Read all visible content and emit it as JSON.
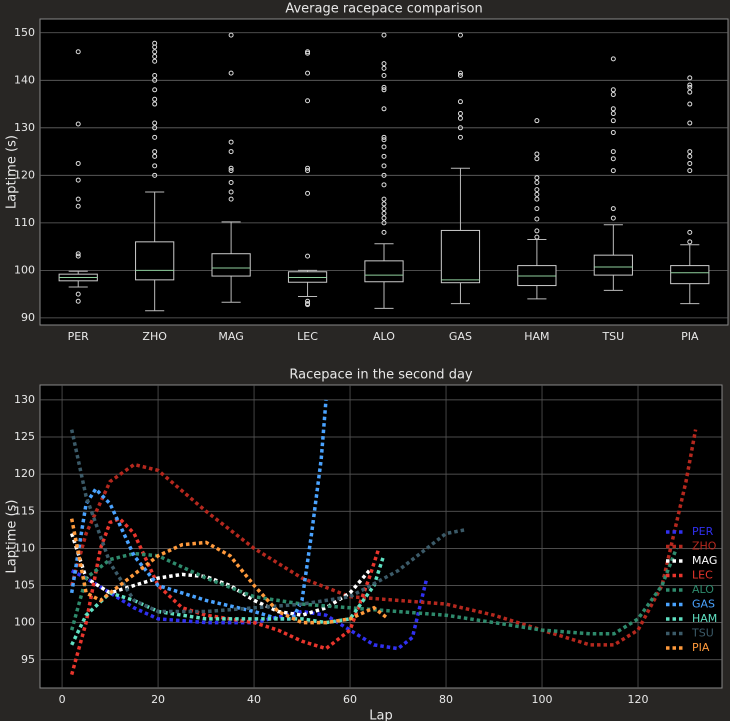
{
  "chart_data": [
    {
      "type": "box",
      "title": "Average racepace comparison",
      "ylabel": "Laptime (s)",
      "categories": [
        "PER",
        "ZHO",
        "MAG",
        "LEC",
        "ALO",
        "GAS",
        "HAM",
        "TSU",
        "PIA"
      ],
      "boxes": [
        {
          "whislo": 96.5,
          "q1": 97.8,
          "med": 98.5,
          "q3": 99.2,
          "whishi": 99.8,
          "fliers": [
            146,
            130.8,
            122.5,
            119,
            115,
            113.5,
            103.5,
            103,
            95,
            93.5
          ]
        },
        {
          "whislo": 91.5,
          "q1": 98,
          "med": 100,
          "q3": 106,
          "whishi": 116.5,
          "fliers": [
            147.8,
            147,
            146,
            145,
            144,
            141,
            140,
            138,
            136,
            135,
            131,
            130,
            128,
            125,
            124,
            122,
            120
          ]
        },
        {
          "whislo": 93.3,
          "q1": 98.8,
          "med": 100.5,
          "q3": 103.5,
          "whishi": 110.2,
          "fliers": [
            149.5,
            141.5,
            127,
            125,
            121.5,
            121,
            118.5,
            116.5,
            115
          ]
        },
        {
          "whislo": 94.5,
          "q1": 97.5,
          "med": 98.5,
          "q3": 99.7,
          "whishi": 100,
          "fliers": [
            146,
            145.7,
            141.5,
            135.7,
            121.5,
            121,
            116.2,
            103,
            93.5,
            93,
            92.8
          ]
        },
        {
          "whislo": 92,
          "q1": 97.6,
          "med": 99,
          "q3": 102,
          "whishi": 105.6,
          "fliers": [
            149.5,
            143.5,
            142.5,
            141,
            138.5,
            138,
            134,
            128,
            127.5,
            126,
            124,
            122,
            120,
            118,
            115,
            114,
            113,
            112,
            111,
            110,
            108
          ]
        },
        {
          "whislo": 93,
          "q1": 97.4,
          "med": 98,
          "q3": 108.4,
          "whishi": 121.5,
          "fliers": [
            149.5,
            141.5,
            141,
            135.5,
            133,
            132,
            130,
            128
          ]
        },
        {
          "whislo": 94,
          "q1": 96.8,
          "med": 98.8,
          "q3": 101,
          "whishi": 106.5,
          "fliers": [
            131.5,
            124.5,
            123.5,
            119.5,
            118.5,
            117,
            116,
            115,
            113,
            110.8,
            108.3,
            107
          ]
        },
        {
          "whislo": 95.8,
          "q1": 99,
          "med": 100.7,
          "q3": 103.2,
          "whishi": 109.6,
          "fliers": [
            144.5,
            138,
            137,
            134,
            133,
            131.5,
            129,
            125,
            123.5,
            121,
            113,
            111
          ]
        },
        {
          "whislo": 93,
          "q1": 97.2,
          "med": 99.5,
          "q3": 101,
          "whishi": 105.4,
          "fliers": [
            140.5,
            139,
            138.5,
            137.5,
            135,
            131,
            125,
            124,
            122.5,
            121,
            108,
            106
          ]
        }
      ],
      "box_color": "#000000",
      "median_color": "#8fd19e",
      "ylim": [
        88.5,
        152.9
      ],
      "yticks": [
        90,
        100,
        110,
        120,
        130,
        140,
        150
      ],
      "grid": true
    },
    {
      "type": "line",
      "title": "Racepace in the second day",
      "xlabel": "Lap",
      "ylabel": "Laptime (s)",
      "series": [
        {
          "name": "PER",
          "color": "#3030f0",
          "x": [
            2,
            5,
            10,
            15,
            20,
            30,
            40,
            50,
            55,
            60,
            65,
            70,
            73,
            76
          ],
          "values": [
            107,
            106,
            104,
            102,
            100.5,
            100,
            100,
            101.5,
            101,
            99,
            97,
            96.5,
            98,
            106
          ]
        },
        {
          "name": "ZHO",
          "color": "#b5281e",
          "x": [
            2,
            5,
            10,
            15,
            20,
            30,
            40,
            50,
            60,
            70,
            80,
            90,
            100,
            110,
            115,
            120,
            125,
            130,
            132
          ],
          "values": [
            105,
            112,
            119,
            121.3,
            120.5,
            115,
            110,
            106,
            103.5,
            103,
            102.5,
            101,
            99,
            97,
            97,
            99,
            105,
            119,
            126
          ]
        },
        {
          "name": "MAG",
          "color": "#ffffff",
          "x": [
            2,
            5,
            10,
            15,
            20,
            25,
            30,
            35,
            40,
            45,
            50,
            55,
            60,
            64
          ],
          "values": [
            112,
            106,
            104,
            105,
            106,
            106.5,
            106.2,
            105,
            103,
            101.5,
            101,
            102,
            104,
            107
          ]
        },
        {
          "name": "LEC",
          "color": "#e8352c",
          "x": [
            2,
            5,
            8,
            10,
            12,
            15,
            20,
            25,
            30,
            40,
            45,
            50,
            55,
            60,
            64,
            66
          ],
          "values": [
            93,
            100,
            110,
            113.5,
            114,
            112,
            105,
            102,
            101,
            100,
            99,
            97.5,
            96.5,
            99,
            106,
            110
          ]
        },
        {
          "name": "ALO",
          "color": "#2e8a6c",
          "x": [
            2,
            5,
            10,
            15,
            20,
            30,
            40,
            50,
            60,
            70,
            80,
            90,
            100,
            110,
            115,
            120,
            125,
            128
          ],
          "values": [
            99,
            106,
            108.5,
            109.3,
            109,
            106,
            103.5,
            102.5,
            102,
            101.5,
            101,
            100,
            99,
            98.5,
            98.5,
            100.5,
            105,
            110
          ]
        },
        {
          "name": "GAS",
          "color": "#4aa3ff",
          "x": [
            2,
            5,
            7,
            10,
            15,
            20,
            30,
            40,
            45,
            48,
            50,
            52,
            54,
            55
          ],
          "values": [
            104,
            116,
            118,
            116,
            109,
            105,
            103,
            101.5,
            100.5,
            100.5,
            103,
            112,
            122,
            130
          ]
        },
        {
          "name": "HAM",
          "color": "#5fe0c2",
          "x": [
            2,
            5,
            10,
            15,
            20,
            30,
            40,
            50,
            55,
            60,
            65,
            67
          ],
          "values": [
            97,
            101,
            104,
            103,
            101.5,
            100.5,
            100.5,
            100.5,
            100,
            100.5,
            105,
            109
          ]
        },
        {
          "name": "TSU",
          "color": "#3b5a68",
          "x": [
            2,
            5,
            10,
            15,
            20,
            30,
            40,
            50,
            60,
            70,
            75,
            80,
            84
          ],
          "values": [
            126,
            117,
            108,
            103,
            101.5,
            101.5,
            102,
            102.5,
            103.5,
            107,
            109.5,
            112,
            112.5
          ]
        },
        {
          "name": "PIA",
          "color": "#ff9a3c",
          "x": [
            2,
            5,
            8,
            10,
            15,
            20,
            25,
            30,
            35,
            40,
            45,
            50,
            55,
            60,
            65,
            68
          ],
          "values": [
            114,
            104,
            103,
            104,
            106.5,
            109,
            110.5,
            110.8,
            109,
            105,
            101.5,
            100,
            100,
            100.5,
            102,
            100.5
          ]
        }
      ],
      "xlim": [
        -4.6,
        137.5
      ],
      "ylim": [
        91.2,
        132
      ],
      "xticks": [
        0,
        20,
        40,
        60,
        80,
        100,
        120
      ],
      "yticks": [
        95,
        100,
        105,
        110,
        115,
        120,
        125,
        130
      ],
      "grid": true,
      "legend": "lower right"
    }
  ]
}
